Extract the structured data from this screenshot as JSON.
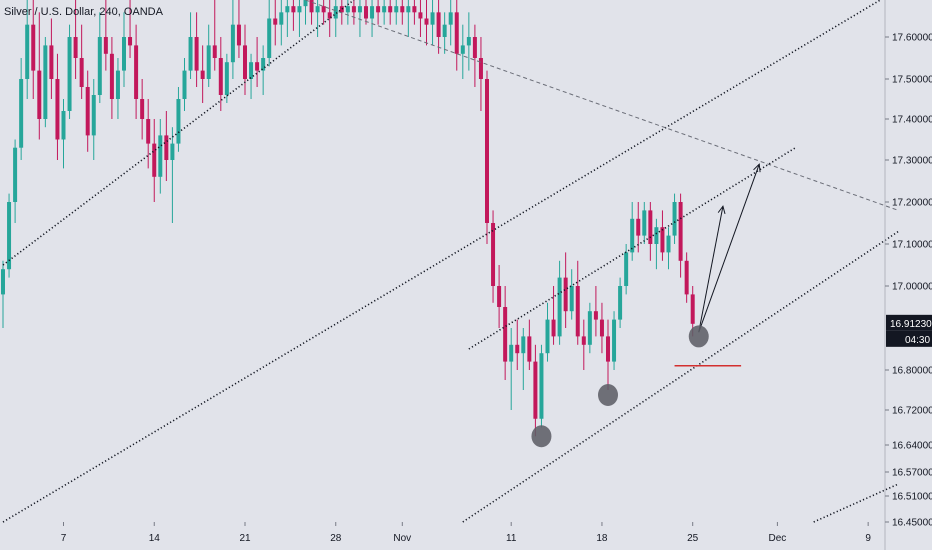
{
  "symbol_title": "Silver / U.S. Dollar, 240, OANDA",
  "price_tag": "16.91230",
  "countdown_tag": "04:30",
  "colors": {
    "background": "#e1e3ea",
    "up": "#26a69a",
    "down": "#c2185b",
    "tag": "#131722",
    "support": "#d32f2f"
  },
  "chart_data": {
    "type": "candlestick",
    "title": "Silver / U.S. Dollar, 240, OANDA",
    "x_ticks": [
      {
        "label": "7",
        "bar": 10
      },
      {
        "label": "14",
        "bar": 25
      },
      {
        "label": "21",
        "bar": 40
      },
      {
        "label": "28",
        "bar": 55
      },
      {
        "label": "Nov",
        "bar": 66
      },
      {
        "label": "11",
        "bar": 84
      },
      {
        "label": "18",
        "bar": 99
      },
      {
        "label": "25",
        "bar": 114
      },
      {
        "label": "Dec",
        "bar": 128
      },
      {
        "label": "9",
        "bar": 143
      }
    ],
    "y_ticks": [
      17.6,
      17.5,
      17.4,
      17.3,
      17.2,
      17.1,
      17.0,
      16.8,
      16.72,
      16.64,
      16.57,
      16.51,
      16.45
    ],
    "y_tick_labels": [
      "17.60000",
      "17.50000",
      "17.40000",
      "17.30000",
      "17.20000",
      "17.10000",
      "17.00000",
      "16.80000",
      "16.72000",
      "16.64000",
      "16.57000",
      "16.51000",
      "16.45000"
    ],
    "ylim": [
      16.45,
      17.66
    ],
    "last_price": 16.9123,
    "candles": [
      [
        16.98,
        17.06,
        16.9,
        17.04
      ],
      [
        17.04,
        17.22,
        17.02,
        17.2
      ],
      [
        17.2,
        17.35,
        17.15,
        17.33
      ],
      [
        17.33,
        17.55,
        17.3,
        17.5
      ],
      [
        17.5,
        17.7,
        17.45,
        17.62
      ],
      [
        17.62,
        17.66,
        17.45,
        17.52
      ],
      [
        17.52,
        17.64,
        17.35,
        17.4
      ],
      [
        17.4,
        17.6,
        17.38,
        17.58
      ],
      [
        17.58,
        17.63,
        17.45,
        17.5
      ],
      [
        17.5,
        17.56,
        17.3,
        17.35
      ],
      [
        17.35,
        17.45,
        17.28,
        17.42
      ],
      [
        17.42,
        17.62,
        17.4,
        17.6
      ],
      [
        17.6,
        17.66,
        17.5,
        17.55
      ],
      [
        17.55,
        17.62,
        17.45,
        17.48
      ],
      [
        17.48,
        17.52,
        17.32,
        17.36
      ],
      [
        17.36,
        17.5,
        17.3,
        17.46
      ],
      [
        17.46,
        17.64,
        17.44,
        17.6
      ],
      [
        17.6,
        17.66,
        17.52,
        17.56
      ],
      [
        17.56,
        17.6,
        17.4,
        17.45
      ],
      [
        17.45,
        17.55,
        17.4,
        17.52
      ],
      [
        17.52,
        17.64,
        17.48,
        17.6
      ],
      [
        17.6,
        17.66,
        17.55,
        17.58
      ],
      [
        17.58,
        17.62,
        17.4,
        17.45
      ],
      [
        17.45,
        17.5,
        17.35,
        17.4
      ],
      [
        17.4,
        17.45,
        17.28,
        17.34
      ],
      [
        17.34,
        17.4,
        17.2,
        17.26
      ],
      [
        17.26,
        17.4,
        17.22,
        17.36
      ],
      [
        17.36,
        17.42,
        17.25,
        17.3
      ],
      [
        17.3,
        17.38,
        17.15,
        17.34
      ],
      [
        17.34,
        17.48,
        17.32,
        17.45
      ],
      [
        17.45,
        17.55,
        17.42,
        17.52
      ],
      [
        17.52,
        17.64,
        17.5,
        17.6
      ],
      [
        17.6,
        17.64,
        17.48,
        17.52
      ],
      [
        17.52,
        17.58,
        17.44,
        17.5
      ],
      [
        17.5,
        17.62,
        17.48,
        17.58
      ],
      [
        17.58,
        17.66,
        17.52,
        17.55
      ],
      [
        17.55,
        17.6,
        17.42,
        17.46
      ],
      [
        17.46,
        17.56,
        17.44,
        17.54
      ],
      [
        17.54,
        17.66,
        17.5,
        17.62
      ],
      [
        17.62,
        17.66,
        17.55,
        17.58
      ],
      [
        17.58,
        17.62,
        17.46,
        17.5
      ],
      [
        17.5,
        17.56,
        17.45,
        17.54
      ],
      [
        17.54,
        17.6,
        17.48,
        17.52
      ],
      [
        17.52,
        17.58,
        17.46,
        17.55
      ],
      [
        17.55,
        17.66,
        17.53,
        17.63
      ],
      [
        17.63,
        17.66,
        17.58,
        17.62
      ],
      [
        17.62,
        17.66,
        17.58,
        17.64
      ],
      [
        17.64,
        17.66,
        17.6,
        17.65
      ],
      [
        17.65,
        17.66,
        17.61,
        17.64
      ],
      [
        17.64,
        17.66,
        17.6,
        17.65
      ],
      [
        17.65,
        17.66,
        17.62,
        17.66
      ],
      [
        17.66,
        17.66,
        17.62,
        17.64
      ],
      [
        17.64,
        17.66,
        17.6,
        17.65
      ],
      [
        17.65,
        17.66,
        17.62,
        17.64
      ],
      [
        17.64,
        17.66,
        17.6,
        17.63
      ],
      [
        17.63,
        17.66,
        17.6,
        17.65
      ],
      [
        17.65,
        17.66,
        17.62,
        17.64
      ],
      [
        17.64,
        17.66,
        17.62,
        17.65
      ],
      [
        17.65,
        17.66,
        17.62,
        17.64
      ],
      [
        17.64,
        17.66,
        17.6,
        17.65
      ],
      [
        17.65,
        17.66,
        17.62,
        17.63
      ],
      [
        17.63,
        17.66,
        17.6,
        17.65
      ],
      [
        17.65,
        17.66,
        17.62,
        17.64
      ],
      [
        17.64,
        17.66,
        17.62,
        17.65
      ],
      [
        17.65,
        17.66,
        17.62,
        17.64
      ],
      [
        17.64,
        17.66,
        17.62,
        17.65
      ],
      [
        17.65,
        17.66,
        17.62,
        17.64
      ],
      [
        17.64,
        17.66,
        17.6,
        17.65
      ],
      [
        17.65,
        17.66,
        17.62,
        17.64
      ],
      [
        17.64,
        17.66,
        17.6,
        17.63
      ],
      [
        17.63,
        17.66,
        17.58,
        17.62
      ],
      [
        17.62,
        17.66,
        17.58,
        17.64
      ],
      [
        17.64,
        17.66,
        17.56,
        17.6
      ],
      [
        17.6,
        17.64,
        17.56,
        17.62
      ],
      [
        17.62,
        17.66,
        17.58,
        17.64
      ],
      [
        17.64,
        17.66,
        17.52,
        17.56
      ],
      [
        17.56,
        17.62,
        17.5,
        17.58
      ],
      [
        17.58,
        17.64,
        17.52,
        17.6
      ],
      [
        17.6,
        17.62,
        17.48,
        17.55
      ],
      [
        17.55,
        17.6,
        17.42,
        17.5
      ],
      [
        17.5,
        17.52,
        17.1,
        17.15
      ],
      [
        17.15,
        17.18,
        16.96,
        17.0
      ],
      [
        17.0,
        17.05,
        16.9,
        16.95
      ],
      [
        16.95,
        17.0,
        16.78,
        16.82
      ],
      [
        16.82,
        16.9,
        16.72,
        16.86
      ],
      [
        16.86,
        16.92,
        16.8,
        16.84
      ],
      [
        16.84,
        16.9,
        16.76,
        16.88
      ],
      [
        16.88,
        16.92,
        16.8,
        16.82
      ],
      [
        16.82,
        16.86,
        16.66,
        16.7
      ],
      [
        16.7,
        16.86,
        16.68,
        16.84
      ],
      [
        16.84,
        16.96,
        16.82,
        16.92
      ],
      [
        16.92,
        17.0,
        16.86,
        16.88
      ],
      [
        16.88,
        17.06,
        16.86,
        17.02
      ],
      [
        17.02,
        17.08,
        16.9,
        16.94
      ],
      [
        16.94,
        17.04,
        16.92,
        17.0
      ],
      [
        17.0,
        17.06,
        16.86,
        16.88
      ],
      [
        16.88,
        16.92,
        16.8,
        16.86
      ],
      [
        16.86,
        16.96,
        16.84,
        16.94
      ],
      [
        16.94,
        17.0,
        16.88,
        16.92
      ],
      [
        16.92,
        16.96,
        16.84,
        16.88
      ],
      [
        16.88,
        16.92,
        16.76,
        16.82
      ],
      [
        16.82,
        16.94,
        16.8,
        16.92
      ],
      [
        16.92,
        17.02,
        16.9,
        17.0
      ],
      [
        17.0,
        17.1,
        16.98,
        17.08
      ],
      [
        17.08,
        17.2,
        17.06,
        17.16
      ],
      [
        17.16,
        17.2,
        17.08,
        17.12
      ],
      [
        17.12,
        17.2,
        17.1,
        17.18
      ],
      [
        17.18,
        17.2,
        17.06,
        17.1
      ],
      [
        17.1,
        17.16,
        17.04,
        17.14
      ],
      [
        17.14,
        17.18,
        17.06,
        17.08
      ],
      [
        17.08,
        17.14,
        17.04,
        17.12
      ],
      [
        17.12,
        17.22,
        17.1,
        17.2
      ],
      [
        17.2,
        17.22,
        17.02,
        17.06
      ],
      [
        17.06,
        17.08,
        16.96,
        16.98
      ],
      [
        16.98,
        17.0,
        16.88,
        16.91
      ]
    ],
    "trend_lines": [
      {
        "name": "channel-upper-left",
        "b1": 0,
        "p1": 17.05,
        "b2": 58,
        "p2": 17.66
      },
      {
        "name": "long-rising-trendline",
        "b1": 0,
        "p1": 16.45,
        "b2": 145,
        "p2": 17.66
      },
      {
        "name": "falling-trendline",
        "b1": 50,
        "p1": 17.66,
        "b2": 148,
        "p2": 17.18
      },
      {
        "name": "channel-upper-right",
        "b1": 77,
        "p1": 16.85,
        "b2": 131,
        "p2": 17.33
      },
      {
        "name": "channel-lower-right",
        "b1": 76,
        "p1": 16.45,
        "b2": 148,
        "p2": 17.13
      },
      {
        "name": "lower-right-extension",
        "b1": 134,
        "p1": 16.45,
        "b2": 148,
        "p2": 16.54
      }
    ],
    "touch_points": [
      {
        "name": "touch-point-1",
        "bar": 89,
        "price": 16.66
      },
      {
        "name": "touch-point-2",
        "bar": 100,
        "price": 16.75
      },
      {
        "name": "touch-point-3",
        "bar": 115,
        "price": 16.88
      }
    ],
    "arrows": [
      {
        "name": "arrow-short",
        "b1": 115,
        "p1": 16.89,
        "b2": 119,
        "p2": 17.19
      },
      {
        "name": "arrow-long",
        "b1": 115,
        "p1": 16.89,
        "b2": 125,
        "p2": 17.29
      }
    ],
    "support_line": {
      "b1": 111,
      "b2": 122,
      "price": 16.81
    }
  }
}
